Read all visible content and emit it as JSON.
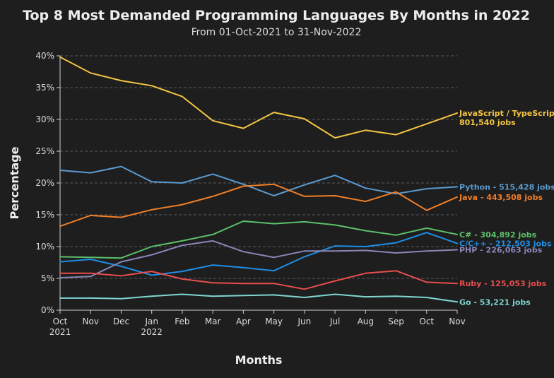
{
  "chart_data": {
    "type": "line",
    "title": "Top 8 Most Demanded Programming Languages By Months in 2022",
    "subtitle": "From 01-Oct-2021 to 31-Nov-2022",
    "xlabel": "Months",
    "ylabel": "Percentage",
    "ylim": [
      0,
      40
    ],
    "yticks": [
      "0%",
      "5%",
      "10%",
      "15%",
      "20%",
      "25%",
      "30%",
      "35%",
      "40%"
    ],
    "x_tick_labels": [
      [
        "Oct",
        "2021"
      ],
      [
        "Nov",
        ""
      ],
      [
        "Dec",
        ""
      ],
      [
        "Jan",
        "2022"
      ],
      [
        "Feb",
        ""
      ],
      [
        "Mar",
        ""
      ],
      [
        "Apr",
        ""
      ],
      [
        "May",
        ""
      ],
      [
        "Jun",
        ""
      ],
      [
        "Jul",
        ""
      ],
      [
        "Aug",
        ""
      ],
      [
        "Sep",
        ""
      ],
      [
        "Oct",
        ""
      ],
      [
        "Nov",
        ""
      ]
    ],
    "grid": "horizontal",
    "legend": "end-of-line labels",
    "series": [
      {
        "name": "JavaScript / TypeScript",
        "label_lines": [
          "JavaScript / TypeScript",
          "801,540 jobs"
        ],
        "color": "#f4c542",
        "values": [
          39.8,
          37.3,
          36.1,
          35.3,
          33.6,
          29.8,
          28.6,
          31.1,
          30.1,
          27.1,
          28.3,
          27.6,
          29.3,
          31.0
        ]
      },
      {
        "name": "Python",
        "label_lines": [
          "Python - 515,428 jobs"
        ],
        "color": "#5b9bd1",
        "values": [
          22.0,
          21.6,
          22.6,
          20.2,
          20.0,
          21.4,
          19.8,
          18.0,
          19.7,
          21.2,
          19.2,
          18.3,
          19.1,
          19.4
        ]
      },
      {
        "name": "Java",
        "label_lines": [
          "Java - 443,508 jobs"
        ],
        "color": "#f07f28",
        "values": [
          13.2,
          14.9,
          14.6,
          15.8,
          16.6,
          17.9,
          19.5,
          19.8,
          17.9,
          18.0,
          17.1,
          18.6,
          15.7,
          17.8
        ]
      },
      {
        "name": "C#",
        "label_lines": [
          "C# - 304,892 jobs"
        ],
        "color": "#5cbf6a",
        "values": [
          8.4,
          8.3,
          8.2,
          10.0,
          10.9,
          11.9,
          14.0,
          13.6,
          13.9,
          13.4,
          12.5,
          11.8,
          12.9,
          11.9
        ]
      },
      {
        "name": "C/C++",
        "label_lines": [
          "C/C++ - 212,503 jobs"
        ],
        "color": "#1e8ee6",
        "values": [
          7.6,
          8.0,
          6.9,
          5.5,
          6.1,
          7.1,
          6.7,
          6.2,
          8.4,
          10.1,
          10.0,
          10.6,
          12.2,
          10.5
        ]
      },
      {
        "name": "PHP",
        "label_lines": [
          "PHP - 226,063 jobs"
        ],
        "color": "#8a86b8",
        "values": [
          5.1,
          5.3,
          7.6,
          8.7,
          10.2,
          10.9,
          9.2,
          8.3,
          9.3,
          9.3,
          9.4,
          9.0,
          9.3,
          9.5
        ]
      },
      {
        "name": "Ruby",
        "label_lines": [
          "Ruby - 125,053 jobs"
        ],
        "color": "#e84d4d",
        "values": [
          5.8,
          5.8,
          5.4,
          6.1,
          4.9,
          4.3,
          4.2,
          4.2,
          3.3,
          4.6,
          5.8,
          6.2,
          4.4,
          4.2
        ]
      },
      {
        "name": "Go",
        "label_lines": [
          "Go - 53,221 jobs"
        ],
        "color": "#7fd6d2",
        "values": [
          1.9,
          1.9,
          1.8,
          2.2,
          2.5,
          2.2,
          2.3,
          2.4,
          2.0,
          2.5,
          2.1,
          2.2,
          2.0,
          1.3
        ]
      }
    ]
  }
}
